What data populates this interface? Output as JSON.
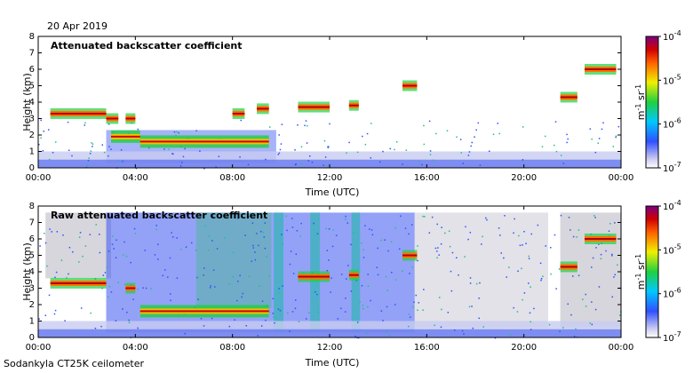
{
  "date": "20 Apr 2019",
  "footer": "Sodankyla CT25K ceilometer",
  "chart_data": [
    {
      "type": "heatmap",
      "title": "Attenuated backscatter coefficient",
      "xlabel": "Time (UTC)",
      "ylabel": "Height (km)",
      "xlim": [
        0,
        24
      ],
      "ylim": [
        0,
        8
      ],
      "x_ticks": [
        "00:00",
        "04:00",
        "08:00",
        "12:00",
        "16:00",
        "20:00",
        "00:00"
      ],
      "y_ticks": [
        "0",
        "1",
        "2",
        "3",
        "4",
        "5",
        "6",
        "7",
        "8"
      ],
      "colorbar": {
        "scale": "log",
        "range": [
          1e-07,
          0.0001
        ],
        "tick_labels": [
          "10",
          "10",
          "10",
          "10"
        ],
        "tick_exponents": [
          "-7",
          "-6",
          "-5",
          "-4"
        ],
        "unit_m": "m",
        "unit_m_exp": "-1",
        "unit_sr": "sr",
        "unit_sr_exp": "-1"
      },
      "features": [
        {
          "name": "cloud-layer",
          "x": [
            0.5,
            2.8
          ],
          "y": 3.3
        },
        {
          "name": "cloud-layer",
          "x": [
            2.8,
            3.3
          ],
          "y": 3.0
        },
        {
          "name": "cloud-layer",
          "x": [
            3.6,
            4.0
          ],
          "y": 3.0
        },
        {
          "name": "boundary-layer",
          "x": [
            3.0,
            4.2
          ],
          "y": 1.9
        },
        {
          "name": "boundary-layer",
          "x": [
            4.2,
            9.5
          ],
          "y": 1.6
        },
        {
          "name": "cloud-layer",
          "x": [
            8.0,
            8.5
          ],
          "y": 3.3
        },
        {
          "name": "cloud-layer",
          "x": [
            9.0,
            9.5
          ],
          "y": 3.6
        },
        {
          "name": "cloud-layer",
          "x": [
            10.7,
            12.0
          ],
          "y": 3.7
        },
        {
          "name": "cloud-layer",
          "x": [
            12.8,
            13.2
          ],
          "y": 3.8
        },
        {
          "name": "cloud-layer",
          "x": [
            15.0,
            15.6
          ],
          "y": 5.0
        },
        {
          "name": "cloud-layer",
          "x": [
            21.5,
            22.2
          ],
          "y": 4.3
        },
        {
          "name": "cloud-layer",
          "x": [
            22.5,
            23.8
          ],
          "y": 6.0
        }
      ]
    },
    {
      "type": "heatmap",
      "title": "Raw attenuated backscatter coefficient",
      "xlabel": "Time (UTC)",
      "ylabel": "Height (km)",
      "xlim": [
        0,
        24
      ],
      "ylim": [
        0,
        8
      ],
      "x_ticks": [
        "00:00",
        "04:00",
        "08:00",
        "12:00",
        "16:00",
        "20:00",
        "00:00"
      ],
      "y_ticks": [
        "0",
        "1",
        "2",
        "3",
        "4",
        "5",
        "6",
        "7",
        "8"
      ],
      "colorbar": {
        "scale": "log",
        "range": [
          1e-07,
          0.0001
        ],
        "tick_labels": [
          "10",
          "10",
          "10",
          "10"
        ],
        "tick_exponents": [
          "-7",
          "-6",
          "-5",
          "-4"
        ],
        "unit_m": "m",
        "unit_m_exp": "-1",
        "unit_sr": "sr",
        "unit_sr_exp": "-1"
      },
      "features": [
        {
          "name": "cloud-layer",
          "x": [
            0.5,
            2.8
          ],
          "y": 3.3
        },
        {
          "name": "cloud-layer",
          "x": [
            3.6,
            4.0
          ],
          "y": 3.0
        },
        {
          "name": "boundary-layer",
          "x": [
            4.2,
            9.5
          ],
          "y": 1.6
        },
        {
          "name": "cloud-layer",
          "x": [
            10.7,
            12.0
          ],
          "y": 3.7
        },
        {
          "name": "cloud-layer",
          "x": [
            12.8,
            13.2
          ],
          "y": 3.8
        },
        {
          "name": "cloud-layer",
          "x": [
            15.0,
            15.6
          ],
          "y": 5.0
        },
        {
          "name": "cloud-layer",
          "x": [
            21.5,
            22.2
          ],
          "y": 4.3
        },
        {
          "name": "cloud-layer",
          "x": [
            22.5,
            23.8
          ],
          "y": 6.0
        }
      ]
    }
  ]
}
